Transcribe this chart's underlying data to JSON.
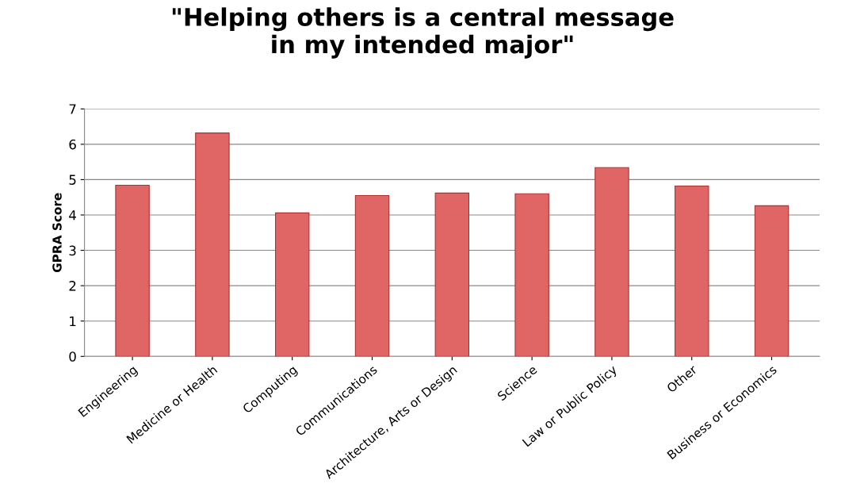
{
  "chart_data": {
    "type": "bar",
    "title": "\"Helping others is a central message\nin my intended major\"",
    "ylabel": "GPRA Score",
    "categories": [
      "Engineering",
      "Medicine or Health",
      "Computing",
      "Communications",
      "Architecture, Arts or Design",
      "Science",
      "Law or Public Policy",
      "Other",
      "Business or Economics"
    ],
    "values": [
      4.84,
      6.32,
      4.06,
      4.55,
      4.62,
      4.6,
      5.34,
      4.82,
      4.26
    ],
    "color": "#e06666",
    "ylim": [
      0,
      7
    ],
    "yticks": [
      0,
      1,
      2,
      3,
      4,
      5,
      6,
      7
    ],
    "grid": "y",
    "legend": false
  }
}
